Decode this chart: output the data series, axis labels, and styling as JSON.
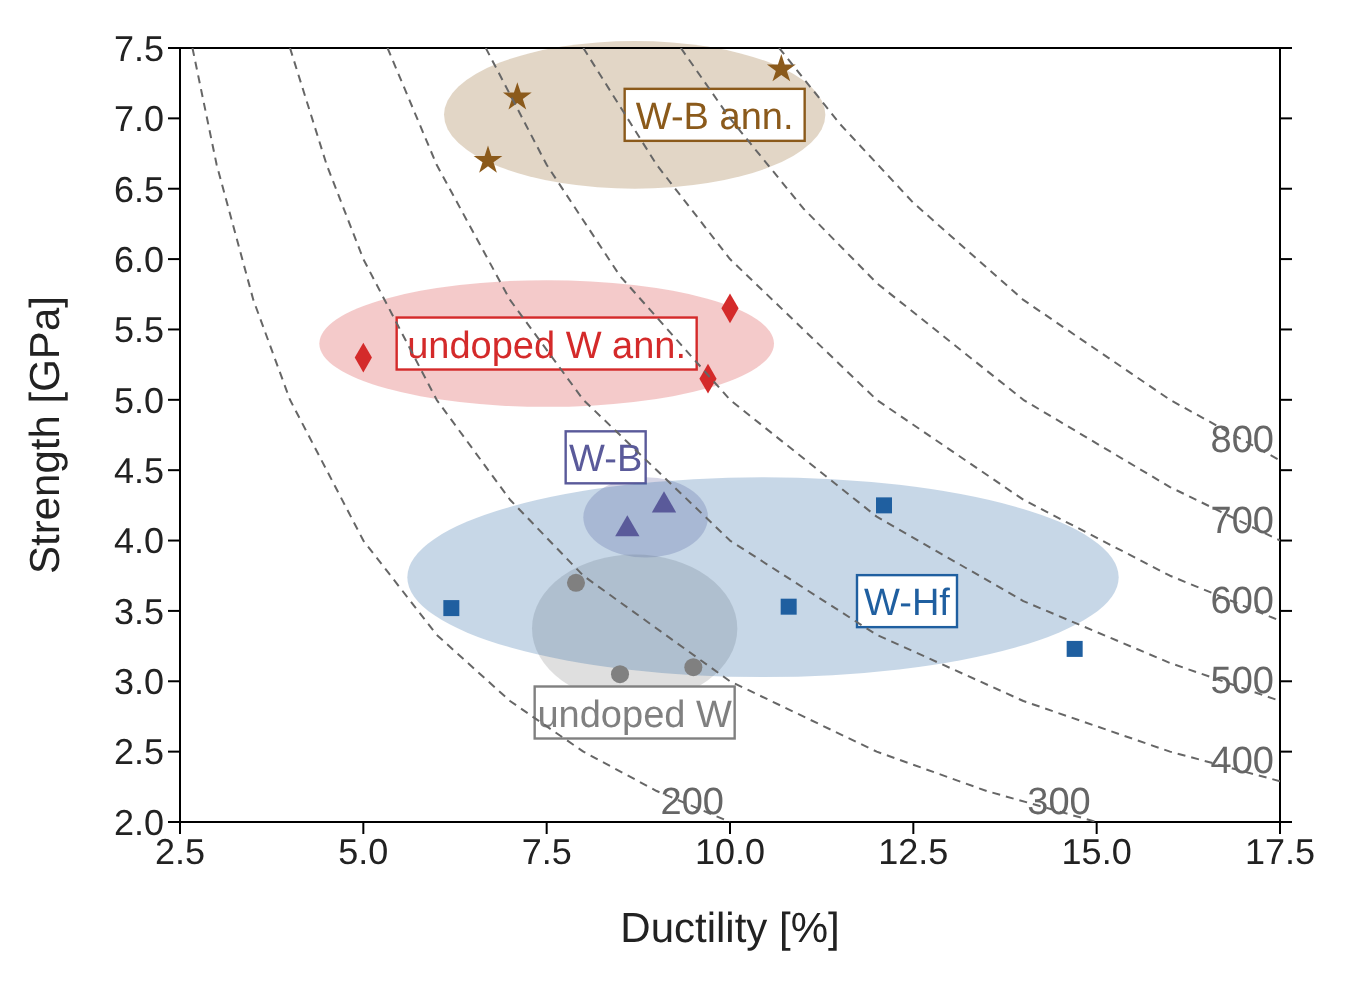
{
  "chart_data": {
    "type": "scatter",
    "xlabel": "Ductility [%]",
    "ylabel": "Strength [GPa]",
    "xlim": [
      2.5,
      17.5
    ],
    "xticks": [
      {
        "value": 2.5,
        "label": "2.5"
      },
      {
        "value": 5,
        "label": "5.0"
      },
      {
        "value": 7.5,
        "label": "7.5"
      },
      {
        "value": 10,
        "label": "10.0"
      },
      {
        "value": 12.5,
        "label": "12.5"
      },
      {
        "value": 15,
        "label": "15.0"
      },
      {
        "value": 17.5,
        "label": "17.5"
      }
    ],
    "ylim": [
      2,
      7.5
    ],
    "yticks": [
      {
        "value": 2,
        "label": "2.0"
      },
      {
        "value": 2.5,
        "label": "2.5"
      },
      {
        "value": 3,
        "label": "3.0"
      },
      {
        "value": 3.5,
        "label": "3.5"
      },
      {
        "value": 4,
        "label": "4.0"
      },
      {
        "value": 4.5,
        "label": "4.5"
      },
      {
        "value": 5,
        "label": "5.0"
      },
      {
        "value": 5.5,
        "label": "5.5"
      },
      {
        "value": 6,
        "label": "6.0"
      },
      {
        "value": 6.5,
        "label": "6.5"
      },
      {
        "value": 7,
        "label": "7.0"
      },
      {
        "value": 7.5,
        "label": "7.5"
      }
    ],
    "series": [
      {
        "name": "W-B ann.",
        "color": "#8b5a1b",
        "marker": "star",
        "x": [
          6.7,
          7.1,
          10.7
        ],
        "values": [
          6.7,
          7.15,
          7.35
        ]
      },
      {
        "name": "undoped W ann.",
        "color": "#d42a2a",
        "marker": "diamond",
        "x": [
          5.0,
          9.7,
          10.0
        ],
        "values": [
          5.3,
          5.15,
          5.65
        ]
      },
      {
        "name": "W-B",
        "color": "#5a5a9a",
        "marker": "triangle",
        "x": [
          8.6,
          9.1
        ],
        "values": [
          4.08,
          4.25
        ]
      },
      {
        "name": "undoped W",
        "color": "#808080",
        "marker": "circle",
        "x": [
          7.9,
          8.5,
          9.5
        ],
        "values": [
          3.7,
          3.05,
          3.1
        ]
      },
      {
        "name": "W-Hf",
        "color": "#1f5fa0",
        "marker": "square",
        "x": [
          6.2,
          10.8,
          12.1,
          14.7
        ],
        "values": [
          3.52,
          3.53,
          4.25,
          3.23
        ]
      },
      {
        "name": "200",
        "type": "line",
        "color": "#666666",
        "line_style": "dashed",
        "x": [
          2.67,
          3,
          3.5,
          4,
          5,
          6,
          7,
          8,
          9,
          10
        ],
        "values": [
          7.5,
          6.67,
          5.71,
          5,
          4,
          3.33,
          2.86,
          2.5,
          2.22,
          2
        ]
      },
      {
        "name": "300",
        "type": "line",
        "color": "#666666",
        "line_style": "dashed",
        "x": [
          4,
          4.5,
          5,
          6,
          7,
          8,
          10,
          12,
          13.5,
          15
        ],
        "values": [
          7.5,
          6.67,
          6,
          5,
          4.29,
          3.75,
          3,
          2.5,
          2.22,
          2
        ]
      },
      {
        "name": "400",
        "type": "line",
        "color": "#666666",
        "line_style": "dashed",
        "x": [
          5.33,
          6,
          7,
          8,
          10,
          12,
          14,
          16,
          17.5
        ],
        "values": [
          7.5,
          6.67,
          5.71,
          5,
          4,
          3.33,
          2.86,
          2.5,
          2.29
        ]
      },
      {
        "name": "500",
        "type": "line",
        "color": "#666666",
        "line_style": "dashed",
        "x": [
          6.67,
          7.5,
          8.5,
          10,
          12,
          14,
          16,
          17.5
        ],
        "values": [
          7.5,
          6.67,
          5.88,
          5,
          4.17,
          3.57,
          3.13,
          2.86
        ]
      },
      {
        "name": "600",
        "type": "line",
        "color": "#666666",
        "line_style": "dashed",
        "x": [
          8,
          9,
          10,
          12,
          14,
          16,
          17.5
        ],
        "values": [
          7.5,
          6.67,
          6,
          5,
          4.29,
          3.75,
          3.43
        ]
      },
      {
        "name": "700",
        "type": "line",
        "color": "#666666",
        "line_style": "dashed",
        "x": [
          9.33,
          10,
          11,
          12,
          14,
          16,
          17.5
        ],
        "values": [
          7.5,
          7,
          6.36,
          5.83,
          5,
          4.38,
          4
        ]
      },
      {
        "name": "800",
        "type": "line",
        "color": "#666666",
        "line_style": "dashed",
        "x": [
          10.67,
          11.5,
          12.5,
          14,
          16,
          17.5
        ],
        "values": [
          7.5,
          6.96,
          6.4,
          5.71,
          5,
          4.57
        ]
      }
    ]
  }
}
